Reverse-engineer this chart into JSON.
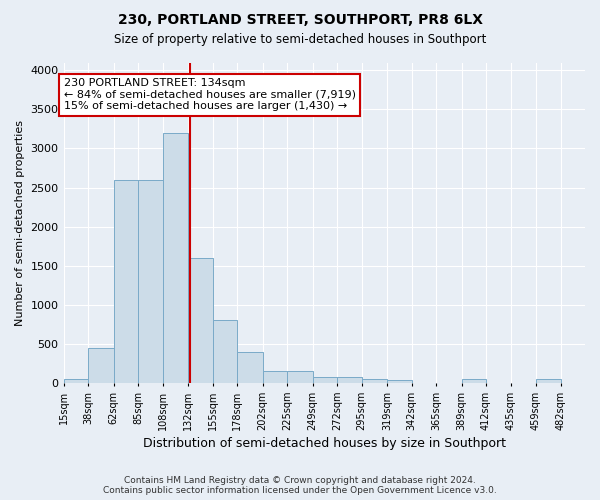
{
  "title1": "230, PORTLAND STREET, SOUTHPORT, PR8 6LX",
  "title2": "Size of property relative to semi-detached houses in Southport",
  "xlabel": "Distribution of semi-detached houses by size in Southport",
  "ylabel": "Number of semi-detached properties",
  "footer": "Contains HM Land Registry data © Crown copyright and database right 2024.\nContains public sector information licensed under the Open Government Licence v3.0.",
  "bin_labels": [
    "15sqm",
    "38sqm",
    "62sqm",
    "85sqm",
    "108sqm",
    "132sqm",
    "155sqm",
    "178sqm",
    "202sqm",
    "225sqm",
    "249sqm",
    "272sqm",
    "295sqm",
    "319sqm",
    "342sqm",
    "365sqm",
    "389sqm",
    "412sqm",
    "435sqm",
    "459sqm",
    "482sqm"
  ],
  "bin_edges": [
    15,
    38,
    62,
    85,
    108,
    132,
    155,
    178,
    202,
    225,
    249,
    272,
    295,
    319,
    342,
    365,
    389,
    412,
    435,
    459,
    482
  ],
  "bar_heights": [
    50,
    450,
    2600,
    2600,
    3200,
    1600,
    800,
    400,
    150,
    150,
    80,
    70,
    50,
    40,
    0,
    0,
    50,
    0,
    0,
    50,
    0
  ],
  "bar_color": "#ccdce8",
  "bar_edge_color": "#7aaac8",
  "property_size": 134,
  "annotation_title": "230 PORTLAND STREET: 134sqm",
  "annotation_line1": "← 84% of semi-detached houses are smaller (7,919)",
  "annotation_line2": "15% of semi-detached houses are larger (1,430) →",
  "vline_color": "#cc0000",
  "annotation_box_color": "#ffffff",
  "annotation_border_color": "#cc0000",
  "ylim": [
    0,
    4100
  ],
  "background_color": "#e8eef5",
  "grid_color": "#ffffff"
}
